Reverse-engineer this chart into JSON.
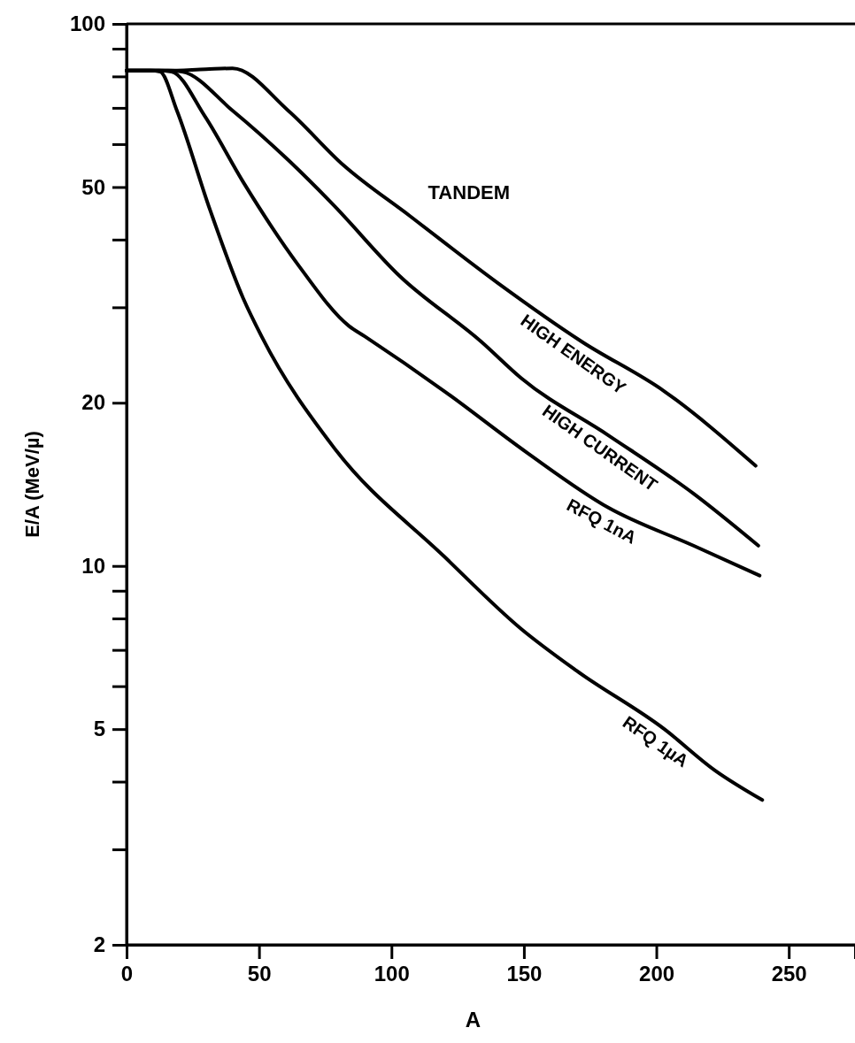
{
  "chart_data": {
    "type": "line",
    "xlabel": "A",
    "ylabel": "E/A (MeV/µ)",
    "log": "y",
    "xlim": [
      0,
      275
    ],
    "xticks": [
      0,
      50,
      100,
      150,
      200,
      250
    ],
    "ylim": [
      2,
      100
    ],
    "yticks": [
      100,
      {
        "value": 90,
        "label": null
      },
      {
        "value": 80,
        "label": null
      },
      {
        "value": 70,
        "label": null
      },
      {
        "value": 60,
        "label": null
      },
      50,
      {
        "value": 40,
        "label": null
      },
      {
        "value": 30,
        "label": null
      },
      20,
      10,
      {
        "value": 9,
        "label": null
      },
      {
        "value": 8,
        "label": null
      },
      {
        "value": 7,
        "label": null
      },
      {
        "value": 6,
        "label": null
      },
      5,
      {
        "value": 4,
        "label": null
      },
      {
        "value": 3,
        "label": null
      },
      2
    ],
    "annotations": [
      "TANDEM"
    ],
    "line_style": "solid",
    "marker": "none",
    "series": [
      {
        "name": "HIGH ENERGY",
        "color": "#000000",
        "x": [
          0,
          15,
          30,
          40,
          61,
          82,
          107,
          140,
          172,
          203,
          237.5
        ],
        "values": [
          82,
          82,
          82.5,
          82.8,
          69.2,
          54.8,
          44.2,
          33.3,
          25.9,
          21.0,
          15.3
        ]
      },
      {
        "name": "HIGH CURRENT",
        "color": "#000000",
        "x": [
          0,
          15.7,
          21,
          40,
          61,
          78,
          103,
          134,
          149,
          182,
          214,
          238.5
        ],
        "values": [
          82,
          82,
          81.6,
          69.2,
          56.1,
          46.4,
          34.3,
          25.9,
          22.2,
          17.4,
          13.6,
          10.9
        ]
      },
      {
        "name": "RFQ 1nA",
        "color": "#000000",
        "x": [
          0,
          12,
          17,
          29.5,
          44,
          65,
          84,
          90,
          120,
          151,
          182,
          214,
          239
        ],
        "values": [
          82,
          82,
          81.6,
          67.6,
          51.1,
          35.8,
          27.7,
          26.5,
          21.0,
          16.2,
          12.8,
          10.9,
          9.6
        ]
      },
      {
        "name": "RFQ 1µA",
        "color": "#000000",
        "x": [
          0,
          9,
          12.7,
          19,
          31.5,
          44,
          51,
          78,
          120,
          149,
          170,
          203,
          222,
          240
        ],
        "values": [
          82,
          82,
          81.6,
          69.2,
          45.4,
          31.2,
          26.5,
          16.6,
          10.4,
          7.65,
          6.4,
          5.0,
          4.2,
          3.7
        ]
      }
    ]
  }
}
